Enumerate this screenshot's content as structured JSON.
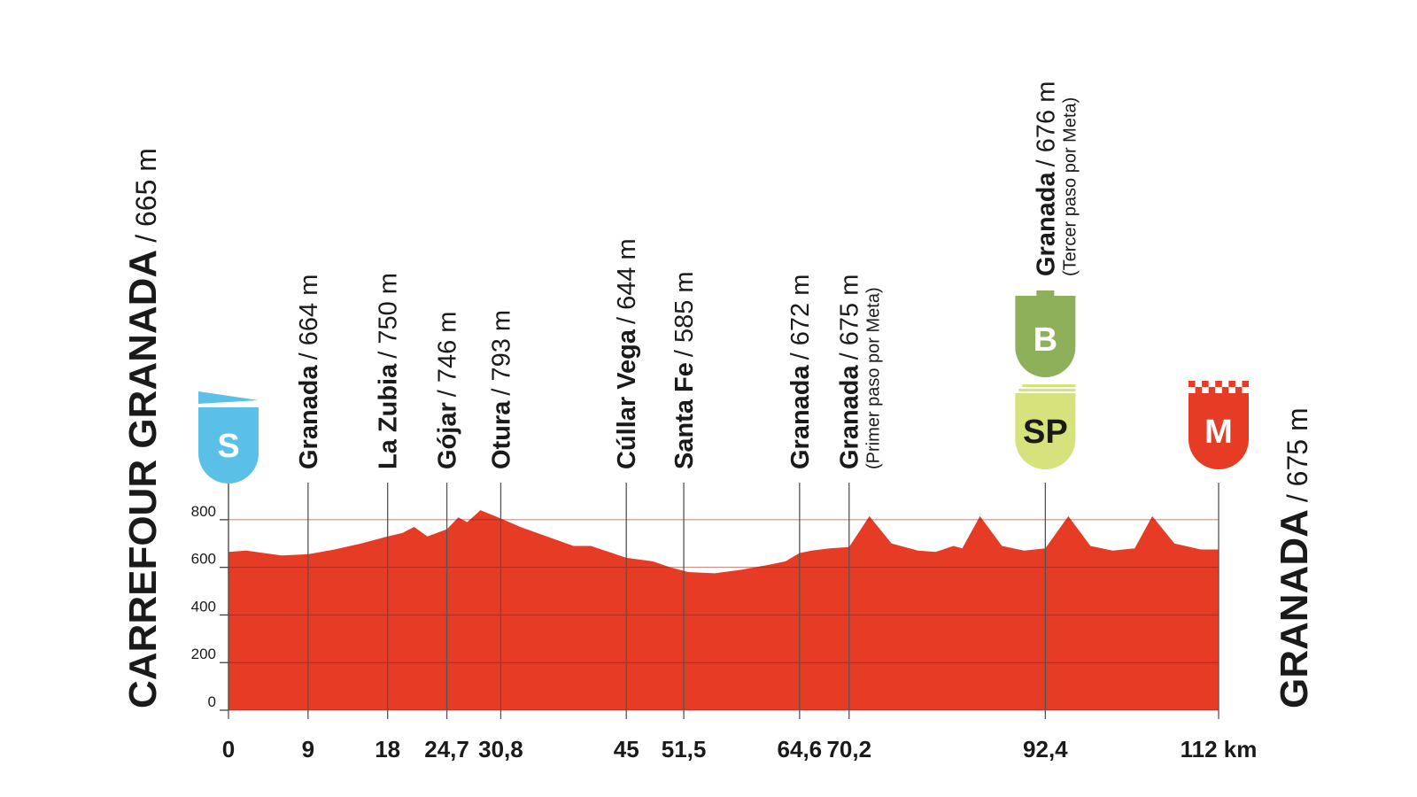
{
  "chart_data": {
    "type": "area",
    "color": "#e63c25",
    "x": [
      0,
      2,
      4,
      6,
      9,
      12,
      15,
      18,
      19.7,
      21,
      22.5,
      24.7,
      26,
      27,
      28.5,
      30.8,
      33,
      36,
      39,
      41,
      45,
      48,
      50,
      52,
      55,
      58,
      61,
      63,
      64.6,
      66,
      68,
      70.2,
      72.5,
      75,
      78,
      80,
      82,
      83,
      85,
      87.5,
      90,
      92.4,
      95,
      97.5,
      100,
      102.5,
      104.5,
      107,
      110,
      112
    ],
    "values": [
      665,
      670,
      660,
      650,
      655,
      675,
      700,
      730,
      745,
      770,
      730,
      760,
      810,
      790,
      840,
      805,
      770,
      730,
      690,
      690,
      640,
      625,
      600,
      580,
      575,
      590,
      610,
      625,
      660,
      670,
      680,
      685,
      815,
      700,
      670,
      665,
      690,
      680,
      815,
      690,
      670,
      680,
      815,
      690,
      670,
      680,
      815,
      700,
      675,
      675
    ],
    "xlim": [
      0,
      112
    ],
    "xticks": [
      0,
      9,
      18,
      {
        "value": 24.7,
        "label": "24,7"
      },
      {
        "value": 30.8,
        "label": "30,8"
      },
      45,
      {
        "value": 51.5,
        "label": "51,5"
      },
      {
        "value": 64.6,
        "label": "64,6"
      },
      {
        "value": 70.2,
        "label": "70,2"
      },
      {
        "value": 92.4,
        "label": "92,4"
      },
      {
        "value": 112,
        "label": "112 km"
      }
    ],
    "ylim": [
      0,
      900
    ],
    "yticks": [
      0,
      200,
      400,
      600,
      800
    ],
    "grid": true,
    "start": {
      "name": "CARREFOUR GRANADA",
      "altitude": "/ 665 m"
    },
    "finish": {
      "name": "GRANADA",
      "altitude": "/ 675 m"
    },
    "waypoints": [
      {
        "name": "Granada",
        "altitude": "/ 664 m"
      },
      {
        "name": "La Zubia",
        "altitude": "/ 750 m"
      },
      {
        "name": "Gójar",
        "altitude": "/ 746 m"
      },
      {
        "name": "Otura",
        "altitude": "/ 793 m"
      },
      {
        "name": "Cúllar Vega",
        "altitude": "/ 644 m"
      },
      {
        "name": "Santa Fe",
        "altitude": "/ 585 m"
      },
      {
        "name": "Granada",
        "altitude": "/ 672 m"
      },
      {
        "name": "Granada",
        "altitude": "/ 675 m",
        "note": "(Primer paso por Meta)"
      },
      {
        "name": "Granada",
        "altitude": "/ 676 m",
        "note": "(Tercer paso por Meta)"
      }
    ],
    "markers": [
      {
        "label": "S",
        "color": "#5bc0e8"
      },
      {
        "label": "B",
        "color": "#8fb05a"
      },
      {
        "label": "SP",
        "color": "#d6e37c"
      },
      {
        "label": "M",
        "color": "#e63c25"
      }
    ]
  }
}
